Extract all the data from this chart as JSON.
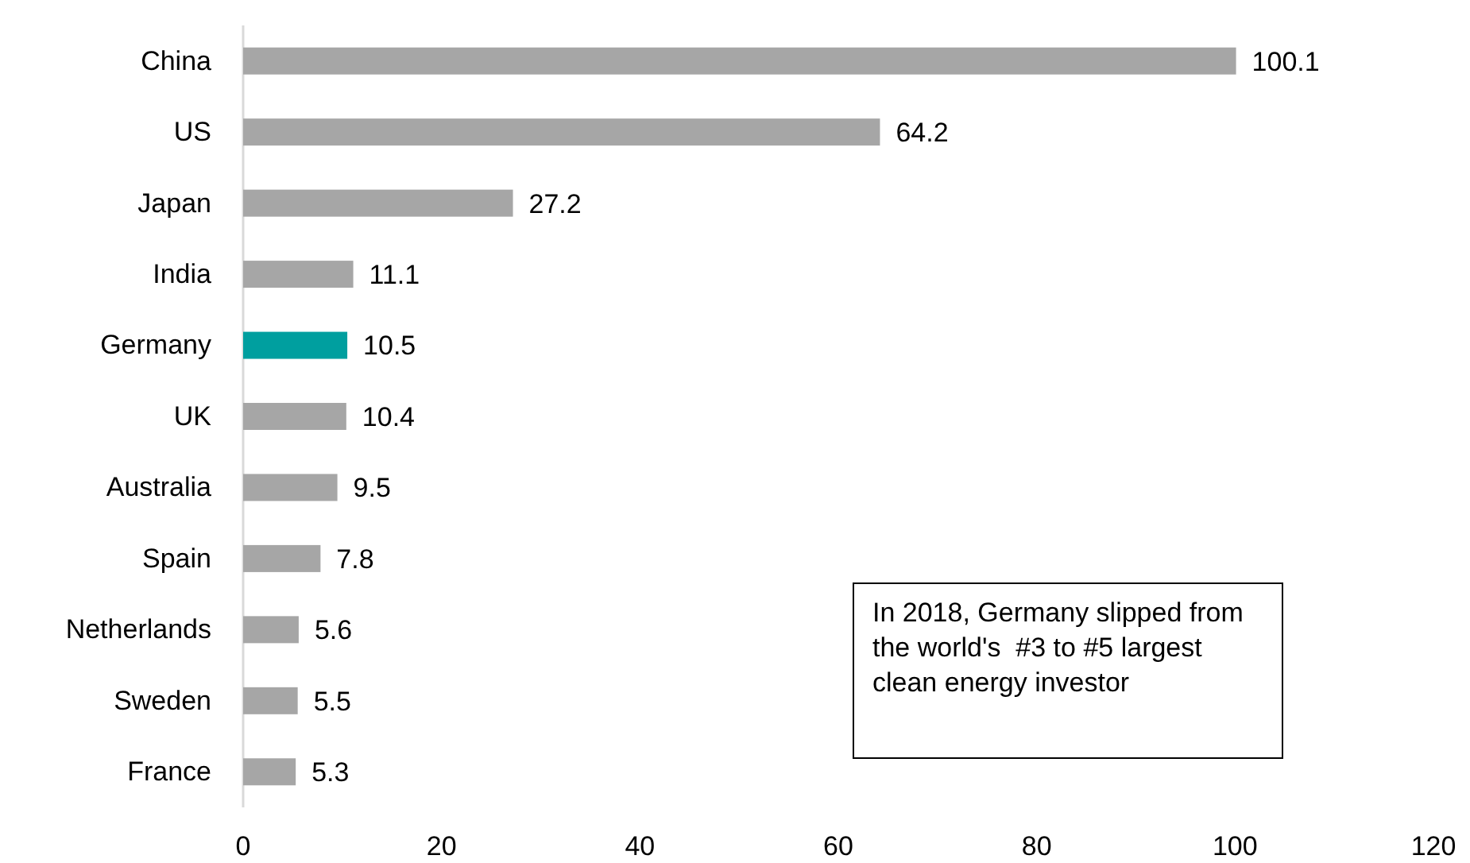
{
  "chart_data": {
    "type": "bar",
    "orientation": "horizontal",
    "categories": [
      "China",
      "US",
      "Japan",
      "India",
      "Germany",
      "UK",
      "Australia",
      "Spain",
      "Netherlands",
      "Sweden",
      "France"
    ],
    "values": [
      100.1,
      64.2,
      27.2,
      11.1,
      10.5,
      10.4,
      9.5,
      7.8,
      5.6,
      5.5,
      5.3
    ],
    "colors": [
      "#a6a6a6",
      "#a6a6a6",
      "#a6a6a6",
      "#a6a6a6",
      "#009f9f",
      "#a6a6a6",
      "#a6a6a6",
      "#a6a6a6",
      "#a6a6a6",
      "#a6a6a6",
      "#a6a6a6"
    ],
    "xlim": [
      0,
      120
    ],
    "xticks": [
      0,
      20,
      40,
      60,
      80,
      100,
      120
    ],
    "data_labels": true,
    "grid": false,
    "annotations": [
      "In 2018, Germany slipped from the world's  #3 to #5 largest clean energy investor"
    ]
  }
}
